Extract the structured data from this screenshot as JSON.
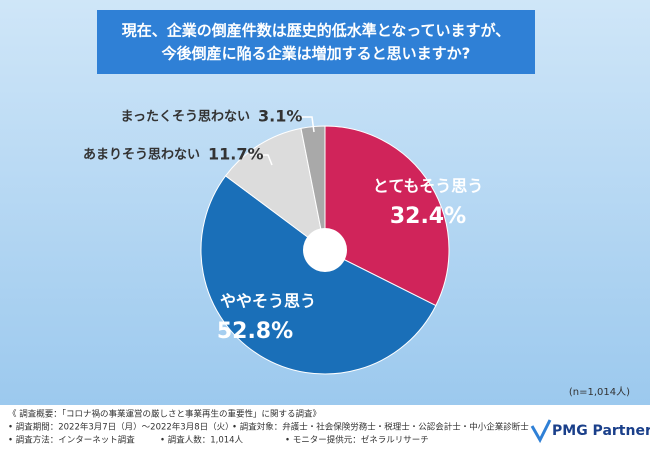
{
  "chart_data": {
    "type": "pie",
    "title": [
      "現在、企業の倒産件数は歴史的低水準となっていますが、",
      "今後倒産に陥る企業は増加すると思いますか?"
    ],
    "categories": [
      "とてもそう思う",
      "ややそう思う",
      "あまりそう思わない",
      "まったくそう思わない"
    ],
    "values": [
      32.4,
      52.8,
      11.7,
      3.1
    ],
    "value_labels": [
      "32.4%",
      "52.8%",
      "11.7%",
      "3.1%"
    ],
    "colors": [
      "#d0245a",
      "#1a6fb8",
      "#dcdcdc",
      "#a9a9a9"
    ],
    "note": "(n=1,014人)"
  },
  "footer": {
    "heading": "《 調査概要：「コロナ禍の事業運営の厳しさと事業再生の重要性」に関する調査》",
    "items": [
      "• 調査期間：2022年3月7日（月）～2022年3月8日（火）",
      "• 調査対象：弁護士・社会保険労務士・税理士・公認会計士・中小企業診断士",
      "• 調査方法：インターネット調査",
      "• 調査人数：1,014人",
      "• モニター提供元：ゼネラルリサーチ"
    ],
    "logo": "PMG Partners"
  }
}
